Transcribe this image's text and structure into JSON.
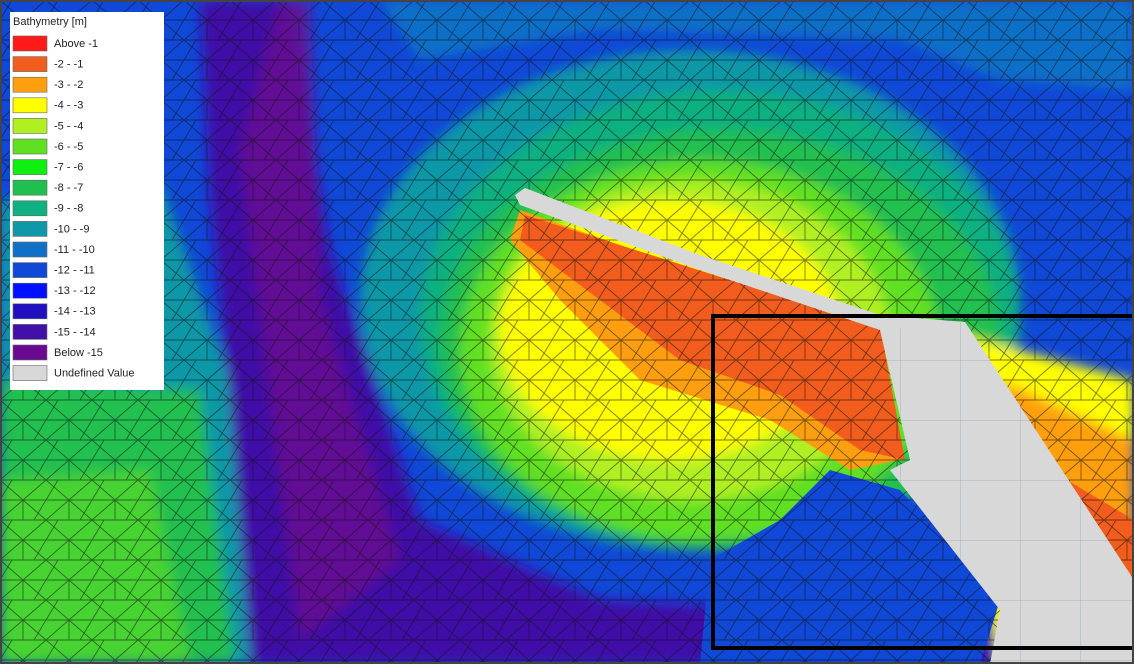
{
  "legend": {
    "title": "Bathymetry [m]",
    "items": [
      {
        "label": "Above  -1",
        "color": "#ff1a1a"
      },
      {
        "label": "-2 -  -1",
        "color": "#f25c1c"
      },
      {
        "label": "-3 -  -2",
        "color": "#ff9f10"
      },
      {
        "label": "-4 -  -3",
        "color": "#ffff00"
      },
      {
        "label": "-5 -  -4",
        "color": "#b0f020"
      },
      {
        "label": "-6 -  -5",
        "color": "#60e020"
      },
      {
        "label": "-7 -  -6",
        "color": "#10f010"
      },
      {
        "label": "-8 -  -7",
        "color": "#20c050"
      },
      {
        "label": "-9 -  -8",
        "color": "#10b080"
      },
      {
        "label": "-10 -  -9",
        "color": "#1098a8"
      },
      {
        "label": "-11 - -10",
        "color": "#1070c8"
      },
      {
        "label": "-12 - -11",
        "color": "#1048d8"
      },
      {
        "label": "-13 - -12",
        "color": "#0010ff"
      },
      {
        "label": "-14 - -13",
        "color": "#2010c0"
      },
      {
        "label": "-15 - -14",
        "color": "#4010a8"
      },
      {
        "label": "Below -15",
        "color": "#6a0a90"
      },
      {
        "label": "Undefined Value",
        "color": "#d8d8d8"
      }
    ]
  }
}
